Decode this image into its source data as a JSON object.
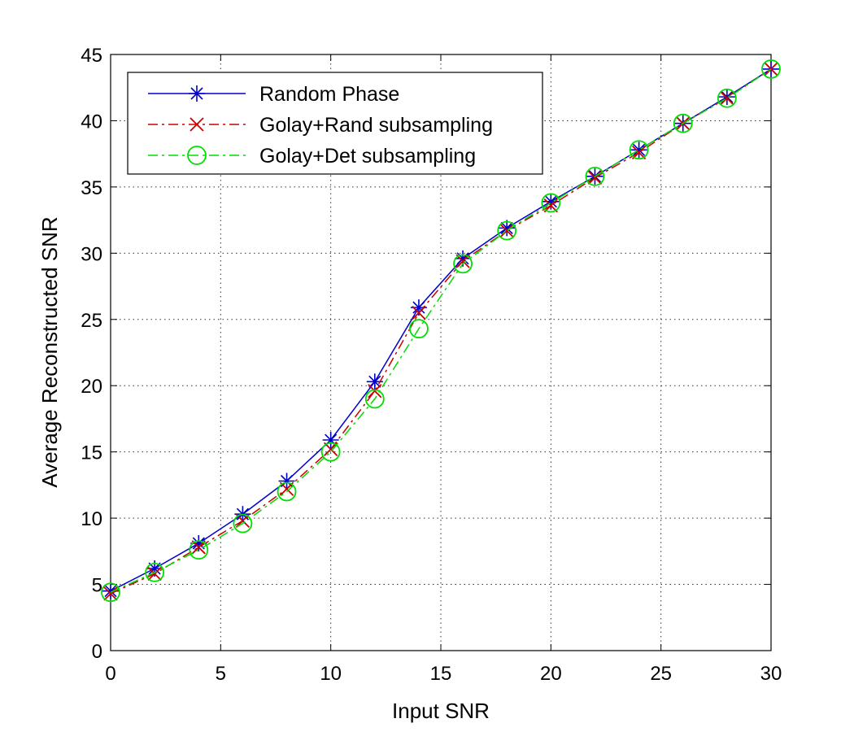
{
  "chart_data": {
    "type": "line",
    "title": "",
    "xlabel": "Input SNR",
    "ylabel": "Average Reconstructed SNR",
    "xlim": [
      0,
      30
    ],
    "ylim": [
      0,
      45
    ],
    "xticks": [
      0,
      5,
      10,
      15,
      20,
      25,
      30
    ],
    "yticks": [
      0,
      5,
      10,
      15,
      20,
      25,
      30,
      35,
      40,
      45
    ],
    "grid": true,
    "legend_position": "top-left",
    "x": [
      0,
      2,
      4,
      6,
      8,
      10,
      12,
      14,
      16,
      18,
      20,
      22,
      24,
      26,
      28,
      30
    ],
    "series": [
      {
        "name": "Random Phase",
        "color": "#0000cc",
        "line_style": "solid",
        "marker": "asterisk",
        "values": [
          4.5,
          6.2,
          8.1,
          10.3,
          12.8,
          15.9,
          20.3,
          25.9,
          29.6,
          31.9,
          33.9,
          35.8,
          37.8,
          39.8,
          41.8,
          43.9
        ]
      },
      {
        "name": "Golay+Rand subsampling",
        "color": "#cc0000",
        "line_style": "dash-dot",
        "marker": "x",
        "values": [
          4.3,
          5.8,
          7.8,
          9.8,
          12.2,
          15.2,
          19.6,
          25.5,
          29.4,
          31.7,
          33.6,
          35.7,
          37.6,
          39.8,
          41.7,
          43.9
        ]
      },
      {
        "name": "Golay+Det subsampling",
        "color": "#00dd00",
        "line_style": "dash-dot",
        "marker": "circle",
        "values": [
          4.4,
          5.9,
          7.6,
          9.6,
          12.0,
          15.0,
          19.0,
          24.3,
          29.2,
          31.7,
          33.8,
          35.8,
          37.8,
          39.8,
          41.7,
          43.9
        ]
      }
    ]
  }
}
